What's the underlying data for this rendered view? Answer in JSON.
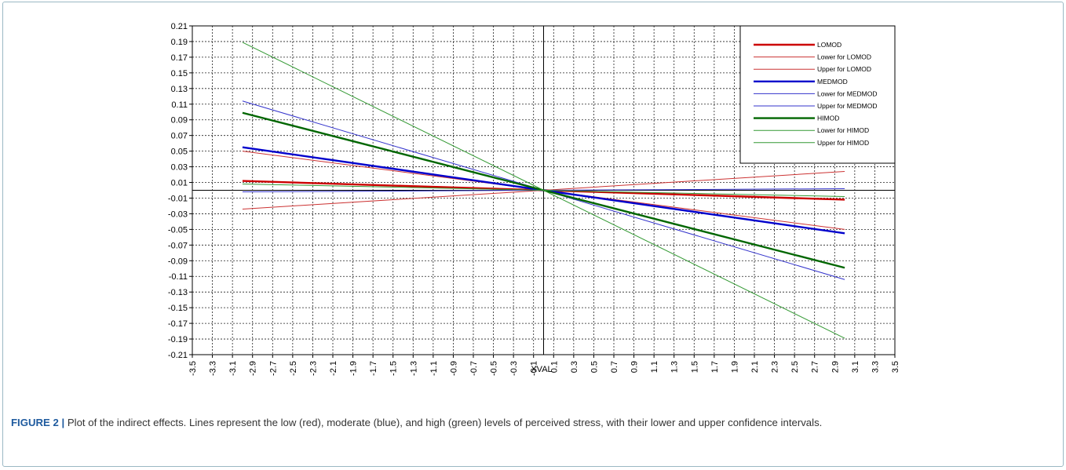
{
  "caption": {
    "label": "FIGURE 2 |",
    "text": " Plot of the indirect effects. Lines represent the low (red), moderate (blue), and high (green) levels of perceived stress, with their lower and upper confidence intervals."
  },
  "chart_data": {
    "type": "line",
    "title": "",
    "xlabel": "XVAL",
    "ylabel": "",
    "xlim": [
      -3.5,
      3.5
    ],
    "ylim": [
      -0.21,
      0.21
    ],
    "x_ticks": [
      "-3.5",
      "-3.3",
      "-3.1",
      "-2.9",
      "-2.7",
      "-2.5",
      "-2.3",
      "-2.1",
      "-1.9",
      "-1.7",
      "-1.5",
      "-1.3",
      "-1.1",
      "-0.9",
      "-0.7",
      "-0.5",
      "-0.3",
      "-0.1",
      "0.1",
      "0.3",
      "0.5",
      "0.7",
      "0.9",
      "1.1",
      "1.3",
      "1.5",
      "1.7",
      "1.9",
      "2.1",
      "2.3",
      "2.5",
      "2.7",
      "2.9",
      "3.1",
      "3.3",
      "3.5"
    ],
    "y_ticks": [
      "0.21",
      "0.19",
      "0.17",
      "0.15",
      "0.13",
      "0.11",
      "0.09",
      "0.07",
      "0.05",
      "0.03",
      "0.01",
      "-0.01",
      "-0.03",
      "-0.05",
      "-0.07",
      "-0.09",
      "-0.11",
      "-0.13",
      "-0.15",
      "-0.17",
      "-0.19",
      "-0.21"
    ],
    "grid": true,
    "legend_position": "top-right",
    "series": [
      {
        "name": "LOMOD",
        "color": "#cc0000",
        "width": 2.4,
        "x": [
          -3.0,
          0.0,
          3.0
        ],
        "y": [
          0.012,
          0.0,
          -0.012
        ]
      },
      {
        "name": "Lower for LOMOD",
        "color": "#cc3333",
        "width": 1,
        "x": [
          -3.0,
          0.0,
          3.0
        ],
        "y": [
          -0.024,
          0.0,
          0.024
        ]
      },
      {
        "name": "Upper for LOMOD",
        "color": "#cc3333",
        "width": 1,
        "x": [
          -3.0,
          0.0,
          3.0
        ],
        "y": [
          0.05,
          0.0,
          -0.05
        ]
      },
      {
        "name": "MEDMOD",
        "color": "#0000cc",
        "width": 2.4,
        "x": [
          -3.0,
          0.0,
          3.0
        ],
        "y": [
          0.055,
          0.0,
          -0.055
        ]
      },
      {
        "name": "Lower for MEDMOD",
        "color": "#3333cc",
        "width": 1,
        "x": [
          -3.0,
          0.0,
          3.0
        ],
        "y": [
          -0.002,
          0.0,
          0.002
        ]
      },
      {
        "name": "Upper for MEDMOD",
        "color": "#3333cc",
        "width": 1,
        "x": [
          -3.0,
          0.0,
          3.0
        ],
        "y": [
          0.114,
          0.0,
          -0.114
        ]
      },
      {
        "name": "HIMOD",
        "color": "#006600",
        "width": 2.4,
        "x": [
          -3.0,
          0.0,
          3.0
        ],
        "y": [
          0.099,
          0.0,
          -0.099
        ]
      },
      {
        "name": "Lower for HIMOD",
        "color": "#339933",
        "width": 1,
        "x": [
          -3.0,
          0.0,
          3.0
        ],
        "y": [
          0.008,
          0.0,
          -0.008
        ]
      },
      {
        "name": "Upper for HIMOD",
        "color": "#339933",
        "width": 1,
        "x": [
          -3.0,
          0.0,
          3.0
        ],
        "y": [
          0.189,
          0.0,
          -0.189
        ]
      }
    ]
  }
}
